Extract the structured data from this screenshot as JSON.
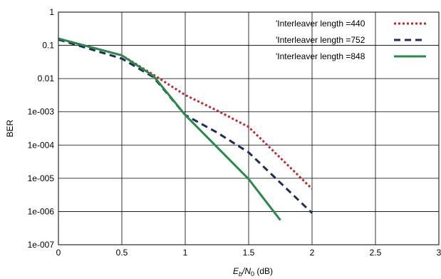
{
  "chart_data": {
    "type": "line",
    "xlabel": {
      "main": "E",
      "sub1": "b",
      "mid": "/N",
      "sub2": "0",
      "unit": " (dB)"
    },
    "ylabel": "BER",
    "xlim": [
      0,
      3
    ],
    "ylim": [
      1e-07,
      1
    ],
    "y_scale": "log",
    "grid": true,
    "legend_position": "top-right",
    "x_ticks": [
      0,
      0.5,
      1,
      1.5,
      2,
      2.5,
      3
    ],
    "x_tick_labels": [
      "0",
      "0.5",
      "1",
      "1.5",
      "2",
      "2.5",
      "3"
    ],
    "y_ticks": [
      1,
      0.1,
      0.01,
      0.001,
      0.0001,
      1e-05,
      1e-06,
      1e-07
    ],
    "y_tick_labels": [
      "1",
      "0.1",
      "0.01",
      "1e-003",
      "1e-004",
      "1e-005",
      "1e-006",
      "1e-007"
    ],
    "series": [
      {
        "name": "'Interleaver length =440",
        "color": "#c0282d",
        "style": "dotted",
        "x": [
          0,
          0.5,
          0.75,
          1,
          1.25,
          1.5,
          2
        ],
        "y": [
          0.16,
          0.05,
          0.013,
          0.0032,
          0.0011,
          0.00035,
          4.8e-06
        ]
      },
      {
        "name": "'Interleaver length =752",
        "color": "#1f2d5c",
        "style": "dashed",
        "x": [
          0,
          0.5,
          0.75,
          1,
          1.25,
          1.5,
          2
        ],
        "y": [
          0.15,
          0.04,
          0.011,
          0.0008,
          0.00024,
          6e-05,
          9e-07
        ]
      },
      {
        "name": "'Interleaver length =848",
        "color": "#2a8a4a",
        "style": "solid",
        "x": [
          0,
          0.5,
          0.75,
          1,
          1.5,
          1.75
        ],
        "y": [
          0.16,
          0.05,
          0.012,
          0.0008,
          9.5e-06,
          5.5e-07
        ]
      }
    ]
  }
}
